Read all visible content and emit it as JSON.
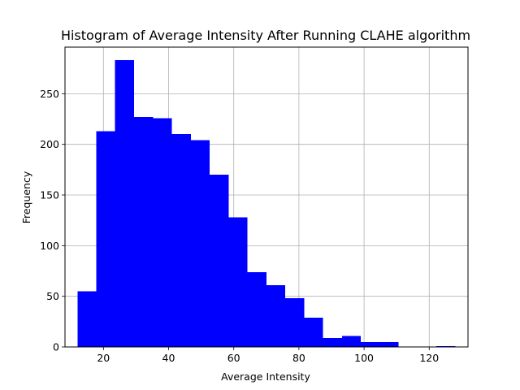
{
  "chart_data": {
    "type": "bar",
    "title": "Histogram of Average Intensity After Running CLAHE algorithm",
    "xlabel": "Average Intensity",
    "ylabel": "Frequency",
    "xlim": [
      8.2,
      131.9
    ],
    "ylim": [
      0,
      296
    ],
    "grid": true,
    "bar_color": "#0000ff",
    "bins": [
      {
        "x0": 12.1,
        "x1": 17.8,
        "count": 55
      },
      {
        "x0": 17.8,
        "x1": 23.6,
        "count": 213
      },
      {
        "x0": 23.6,
        "x1": 29.4,
        "count": 283
      },
      {
        "x0": 29.4,
        "x1": 35.2,
        "count": 227
      },
      {
        "x0": 35.2,
        "x1": 41.0,
        "count": 226
      },
      {
        "x0": 41.0,
        "x1": 46.8,
        "count": 210
      },
      {
        "x0": 46.8,
        "x1": 52.6,
        "count": 204
      },
      {
        "x0": 52.6,
        "x1": 58.4,
        "count": 170
      },
      {
        "x0": 58.4,
        "x1": 64.2,
        "count": 128
      },
      {
        "x0": 64.2,
        "x1": 70.0,
        "count": 74
      },
      {
        "x0": 70.0,
        "x1": 75.8,
        "count": 61
      },
      {
        "x0": 75.8,
        "x1": 81.6,
        "count": 48
      },
      {
        "x0": 81.6,
        "x1": 87.4,
        "count": 29
      },
      {
        "x0": 87.4,
        "x1": 93.2,
        "count": 9
      },
      {
        "x0": 93.2,
        "x1": 99.0,
        "count": 11
      },
      {
        "x0": 99.0,
        "x1": 104.8,
        "count": 5
      },
      {
        "x0": 104.8,
        "x1": 110.6,
        "count": 5
      },
      {
        "x0": 110.6,
        "x1": 116.4,
        "count": 0
      },
      {
        "x0": 116.4,
        "x1": 122.2,
        "count": 0
      },
      {
        "x0": 122.2,
        "x1": 128.0,
        "count": 1
      }
    ],
    "x_ticks": [
      20,
      40,
      60,
      80,
      100,
      120
    ],
    "y_ticks": [
      0,
      50,
      100,
      150,
      200,
      250
    ]
  }
}
